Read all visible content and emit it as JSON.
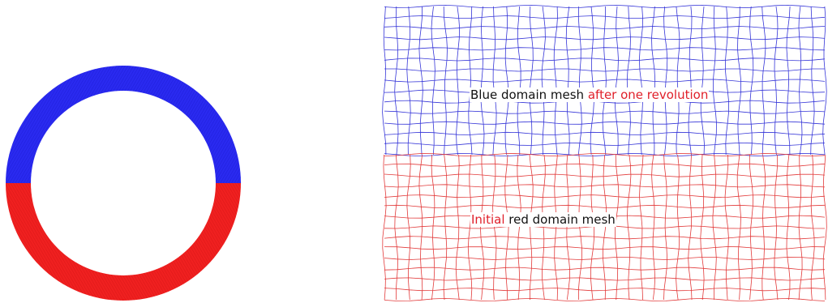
{
  "colors": {
    "blue_domain": "#2a2af0",
    "red_domain": "#f02020",
    "blue_mesh_line": "#3636d8",
    "red_mesh_line": "#e23a3a",
    "label_dark": "#111111",
    "label_red": "#e0202a"
  },
  "annotations": {
    "blue_mesh": {
      "part1": "Blue domain mesh",
      "part2": "after one revolution"
    },
    "red_mesh": {
      "part1": "Initial",
      "part2": "red domain mesh"
    }
  }
}
